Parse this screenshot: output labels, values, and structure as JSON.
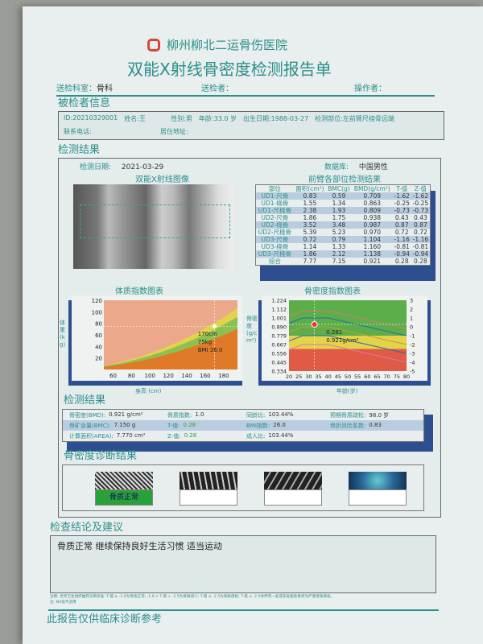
{
  "hospital": {
    "name": "柳州柳北二运骨伤医院",
    "logo_color": "#d9453a"
  },
  "report_title": "双能X射线骨密度检测报告单",
  "meta": {
    "dept_label": "送检科室：",
    "dept_value": "骨科",
    "sender_label": "送检者：",
    "operator_label": "操作者："
  },
  "patient": {
    "section_title": "被检者信息",
    "id": "ID:20210329001",
    "name": "姓名:王",
    "sex": "性别:男",
    "age": "年龄:33.0 岁",
    "dob": "出生日期:1988-03-27",
    "site": "检测部位:左前臂尺桡骨远端",
    "phone": "联系电话:",
    "address": "居住地址:"
  },
  "results": {
    "section_title": "检测结果",
    "date_label": "检测日期:",
    "date": "2021-03-29",
    "db_label": "数据库:",
    "db": "中国男性",
    "image_title": "双能X射线图像",
    "table_title": "前臂各部位检测结果",
    "table_headers": [
      "部位",
      "面积(cm²)",
      "BMC(g)",
      "BMD(g/cm²)",
      "T-值",
      "Z-值"
    ],
    "table_rows": [
      [
        "UD1-尺骨",
        "0.83",
        "0.59",
        "0.709",
        "-1.62",
        "-1.62"
      ],
      [
        "UD1-桡骨",
        "1.55",
        "1.34",
        "0.863",
        "-0.25",
        "-0.25"
      ],
      [
        "UD1-尺桡骨",
        "2.38",
        "1.93",
        "0.809",
        "-0.73",
        "-0.73"
      ],
      [
        "UD2-尺骨",
        "1.86",
        "1.75",
        "0.938",
        "0.43",
        "0.43"
      ],
      [
        "UD2-桡骨",
        "3.52",
        "3.48",
        "0.987",
        "0.87",
        "0.87"
      ],
      [
        "UD2-尺桡骨",
        "5.39",
        "5.23",
        "0.970",
        "0.72",
        "0.72"
      ],
      [
        "UD3-尺骨",
        "0.72",
        "0.79",
        "1.104",
        "-1.16",
        "-1.16"
      ],
      [
        "UD3-桡骨",
        "1.14",
        "1.33",
        "1.160",
        "-0.81",
        "-0.81"
      ],
      [
        "UD3-尺桡骨",
        "1.86",
        "2.12",
        "1.138",
        "-0.94",
        "-0.94"
      ],
      [
        "综合",
        "7.77",
        "7.15",
        "0.921",
        "0.28",
        "0.28"
      ]
    ]
  },
  "bmi_chart": {
    "title": "体质指数图表",
    "ylabel": "体重(kg)",
    "xlabel": "身高 (cm)",
    "xticks": [
      "60",
      "80",
      "100",
      "120",
      "140",
      "160",
      "180"
    ],
    "yticks": [
      "20",
      "40",
      "60",
      "80",
      "100",
      "120"
    ],
    "xlim": [
      50,
      195
    ],
    "ylim": [
      0,
      120
    ],
    "bmi_boundaries": [
      18.5,
      24,
      28
    ],
    "colors": [
      "#e07a28",
      "#8cc152",
      "#e3d34a",
      "#eba88a"
    ],
    "point": {
      "height": 170,
      "weight": 75
    },
    "label_height": "170cm",
    "label_weight": "75kg",
    "label_bmi": "BMI 26.0"
  },
  "bmd_chart": {
    "title": "骨密度指数图表",
    "ylabel": "骨密度(g/cm²)",
    "xlabel": "年龄(岁)",
    "xticks": [
      "20",
      "25",
      "30",
      "35",
      "40",
      "45",
      "50",
      "55",
      "60",
      "65",
      "70",
      "75",
      "80"
    ],
    "yticks": [
      "0.334",
      "0.445",
      "0.556",
      "0.667",
      "0.779",
      "0.890",
      "1.001",
      "1.112",
      "1.224"
    ],
    "yticks_right": [
      "3",
      "2",
      "1",
      "0",
      "-1",
      "-2",
      "-3",
      "-4",
      "-5"
    ],
    "xlim": [
      20,
      80
    ],
    "ylim": [
      0.334,
      1.224
    ],
    "point": {
      "age": 33,
      "bmd": 0.921
    },
    "label_t": "0.281",
    "label_bmd": "0.921g/cm²",
    "colors": [
      "#e05a45",
      "#e3d34a",
      "#5cae4a"
    ]
  },
  "summary": {
    "section_title": "检测结果",
    "rows": [
      [
        [
          "骨密度(BMD):",
          "0.921 g/cm²"
        ],
        [
          "骨质指数:",
          "1.0"
        ],
        [
          "同龄比:",
          "103.44%"
        ],
        [
          "预期骨质疏松:",
          "98.0  岁"
        ]
      ],
      [
        [
          "骨矿含量(BMC):",
          "7.150 g"
        ],
        [
          "T-值:",
          "0.28"
        ],
        [
          "BMI指数:",
          "26.0"
        ],
        [
          "骨折风险系数:",
          "0.83"
        ]
      ],
      [
        [
          "计算面积(AREA):",
          "7.770 cm²"
        ],
        [
          "Z-值:",
          "0.28"
        ],
        [
          "成人比:",
          "103.44%"
        ],
        [
          "",
          ""
        ]
      ]
    ]
  },
  "diagnosis": {
    "section_title": "骨密度诊断结果",
    "items": [
      "骨质正常",
      "",
      "",
      ""
    ],
    "active_color": "#2aa03a"
  },
  "conclusion": {
    "section_title": "检查结论及建议",
    "text": "骨质正常 继续保持良好生活习惯 适当运动"
  },
  "notes": {
    "line1": "注释: 世界卫生组织推荐诊断标准: T-值 ≥ -1.0为骨质正常; -1.0 > T-值 > -2.5为骨质减少; T-值 ≤ -2.5为骨质疏松; T-值 ≤ -2.5并伴有一处或多处脆性骨折为严重骨质疏松。",
    "line2": "注: NA指不适用"
  },
  "footer": "此报告仅供临床诊断参考"
}
